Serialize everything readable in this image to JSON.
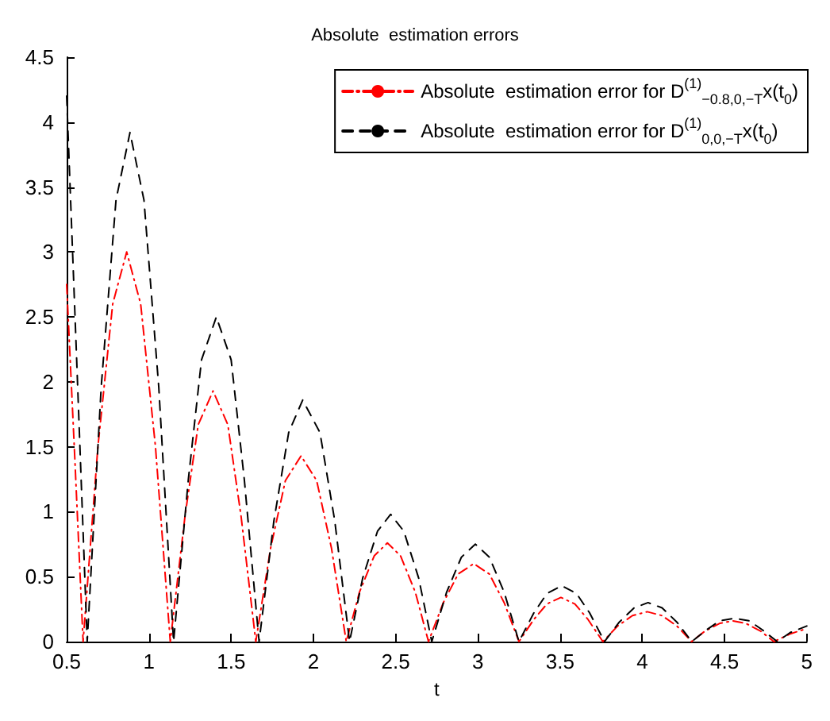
{
  "chart_data": {
    "type": "line",
    "title": "Absolute  estimation errors",
    "xlabel": "t",
    "xlim": [
      0.5,
      5
    ],
    "xticks": [
      0.5,
      1,
      1.5,
      2,
      2.5,
      3,
      3.5,
      4,
      4.5,
      5
    ],
    "ylim": [
      0,
      4.5
    ],
    "yticks": [
      0,
      0.5,
      1,
      1.5,
      2,
      2.5,
      3,
      3.5,
      4,
      4.5
    ],
    "grid": false,
    "legend": "top right",
    "marker": "none",
    "series": [
      {
        "name": "Absolute  estimation error for D$^{(1)}$$_{−0.8,0,−T}$x(t$_{0}$)",
        "color": "#ff0000",
        "line_style": "dashdot",
        "x": [
          0.5,
          0.55,
          0.6,
          0.69,
          0.78,
          0.865,
          0.95,
          1.04,
          1.13,
          1.22,
          1.3,
          1.39,
          1.48,
          1.56,
          1.65,
          1.74,
          1.83,
          1.925,
          2.02,
          2.11,
          2.2,
          2.28,
          2.37,
          2.45,
          2.53,
          2.62,
          2.7,
          2.79,
          2.88,
          2.975,
          3.07,
          3.16,
          3.25,
          3.34,
          3.42,
          3.505,
          3.59,
          3.67,
          3.76,
          3.85,
          3.94,
          4.03,
          4.12,
          4.21,
          4.3,
          4.38,
          4.47,
          4.55,
          4.63,
          4.72,
          4.8,
          4.9,
          5
        ],
        "values": [
          2.75,
          1.4,
          0,
          1.5,
          2.6,
          3.0,
          2.6,
          1.5,
          0,
          0.97,
          1.67,
          1.93,
          1.67,
          0.97,
          0,
          0.72,
          1.24,
          1.43,
          1.24,
          0.72,
          0,
          0.38,
          0.66,
          0.76,
          0.66,
          0.38,
          0,
          0.3,
          0.52,
          0.6,
          0.52,
          0.3,
          0,
          0.17,
          0.29,
          0.34,
          0.29,
          0.17,
          0,
          0.12,
          0.2,
          0.23,
          0.2,
          0.12,
          0,
          0.08,
          0.14,
          0.16,
          0.14,
          0.08,
          0,
          0.06,
          0.1
        ]
      },
      {
        "name": "Absolute  estimation error for D$^{(1)}$$_{0,0,−T}$x(t$_{0}$)",
        "color": "#000000",
        "line_style": "dashed",
        "x": [
          0.5,
          0.56,
          0.625,
          0.71,
          0.8,
          0.885,
          0.97,
          1.06,
          1.15,
          1.24,
          1.32,
          1.41,
          1.5,
          1.58,
          1.67,
          1.76,
          1.85,
          1.935,
          2.04,
          2.13,
          2.22,
          2.3,
          2.39,
          2.47,
          2.55,
          2.64,
          2.72,
          2.81,
          2.9,
          2.985,
          3.07,
          3.16,
          3.25,
          3.34,
          3.42,
          3.51,
          3.6,
          3.68,
          3.77,
          3.86,
          3.95,
          4.035,
          4.12,
          4.21,
          4.3,
          4.39,
          4.47,
          4.56,
          4.65,
          4.73,
          4.82,
          4.9,
          5
        ],
        "values": [
          4.2,
          2.2,
          0,
          1.96,
          3.4,
          3.92,
          3.4,
          1.96,
          0,
          1.25,
          2.17,
          2.5,
          2.17,
          1.25,
          0,
          0.93,
          1.61,
          1.86,
          1.61,
          0.93,
          0,
          0.49,
          0.85,
          0.98,
          0.85,
          0.49,
          0,
          0.38,
          0.65,
          0.75,
          0.65,
          0.38,
          0,
          0.22,
          0.37,
          0.43,
          0.37,
          0.22,
          0,
          0.15,
          0.26,
          0.3,
          0.26,
          0.15,
          0,
          0.09,
          0.16,
          0.18,
          0.16,
          0.09,
          0,
          0.07,
          0.12
        ]
      }
    ]
  }
}
